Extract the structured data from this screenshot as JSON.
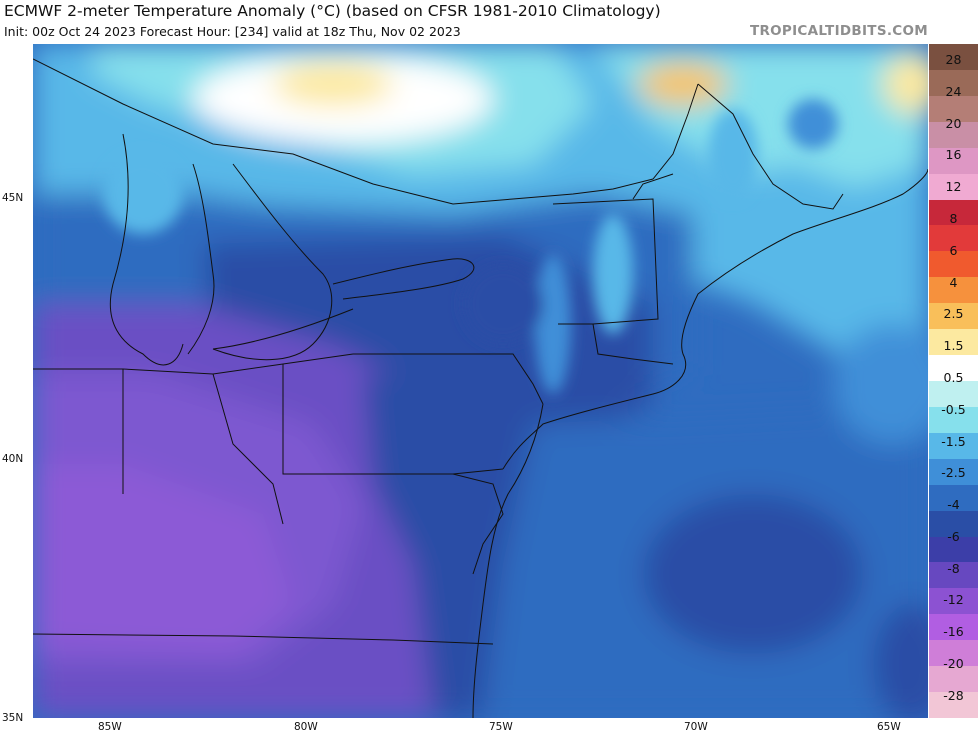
{
  "header": {
    "title": "ECMWF 2-meter Temperature Anomaly (°C) (based on CFSR 1981-2010 Climatology)",
    "subtitle": "Init: 00z Oct 24 2023   Forecast Hour: [234]   valid at 18z Thu, Nov 02 2023",
    "brand": "TROPICALTIDBITS.COM"
  },
  "axes": {
    "lat_labels": [
      "45N",
      "40N",
      "35N"
    ],
    "lon_labels": [
      "85W",
      "80W",
      "75W",
      "70W",
      "65W"
    ]
  },
  "colorbar": {
    "labels": [
      "28",
      "24",
      "20",
      "16",
      "12",
      "8",
      "6",
      "4",
      "2.5",
      "1.5",
      "0.5",
      "-0.5",
      "-1.5",
      "-2.5",
      "-4",
      "-6",
      "-8",
      "-12",
      "-16",
      "-20",
      "-28"
    ],
    "colors": [
      "#7a5040",
      "#9a6a58",
      "#b47e76",
      "#c98fa6",
      "#de97c4",
      "#f0aad2",
      "#c7283a",
      "#e23a3a",
      "#f05a2e",
      "#f6913d",
      "#f9bf5a",
      "#fce9a0",
      "#ffffff",
      "#bff0f0",
      "#86e0ec",
      "#58b8e8",
      "#3f8fd8",
      "#2f6cc0",
      "#2a4ea6",
      "#3c3ea8",
      "#6748c0",
      "#8c52d2",
      "#b15ee2",
      "#cf7ed8",
      "#e6a8d2",
      "#f2c6d6"
    ]
  },
  "map": {
    "colors": {
      "ocean_blue": "#2f6cc0",
      "deep_blue": "#2a4ea6",
      "purple": "#6a4fc4",
      "light_blue": "#58b8e8",
      "cyan": "#86e0ec",
      "warm": "#fce9a0"
    }
  }
}
